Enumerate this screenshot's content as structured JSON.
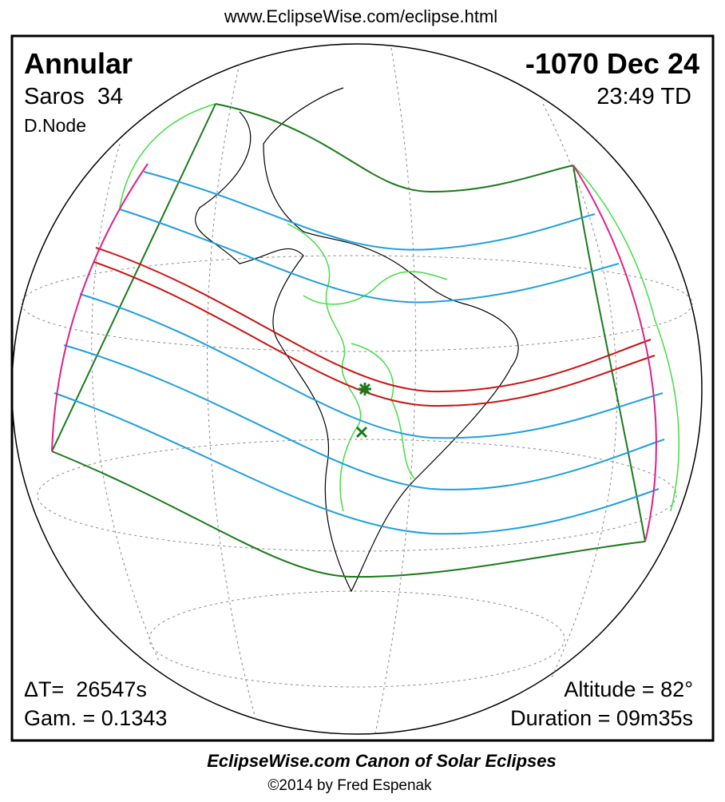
{
  "header": {
    "url": "www.EclipseWise.com/eclipse.html"
  },
  "eclipse": {
    "type": "Annular",
    "saros": "Saros  34",
    "node": "D.Node",
    "date": "-1070 Dec 24",
    "time": "23:49 TD",
    "delta_t": "ΔT=  26547s",
    "gamma": "Gam. = 0.1343",
    "altitude": "Altitude = 82°",
    "duration": "Duration = 09m35s"
  },
  "footer": {
    "title": "EclipseWise.com Canon of Solar Eclipses",
    "credit": "©2014 by Fred Espenak"
  }
}
